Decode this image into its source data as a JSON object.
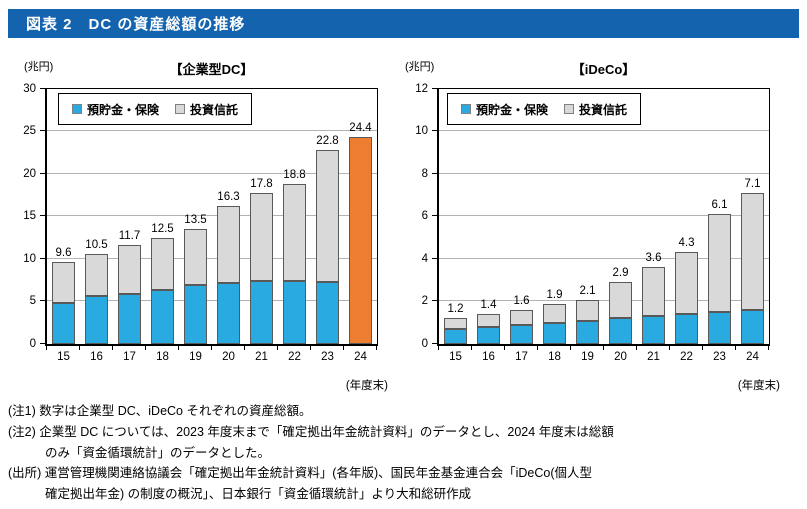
{
  "header": {
    "title": "図表 2　DC の資産総額の推移"
  },
  "colors": {
    "header_bg": "#1363AE",
    "deposits_blue": "#29ABE2",
    "trusts_gray": "#D9D9D9",
    "highlight_orange": "#ED7D31",
    "bar_border": "#595959",
    "gridline": "#B3B3B3"
  },
  "chart_data": [
    {
      "type": "bar",
      "stacked": true,
      "title": "【企業型DC】",
      "unit_label": "(兆円)",
      "x_note": "(年度末)",
      "xlabel": "",
      "ylabel": "兆円",
      "ylim": [
        0,
        30
      ],
      "ytick_step": 5,
      "grid": true,
      "legend_position": "top-left",
      "categories": [
        "15",
        "16",
        "17",
        "18",
        "19",
        "20",
        "21",
        "22",
        "23",
        "24"
      ],
      "series": [
        {
          "name": "預貯金・保険",
          "color": "#29ABE2",
          "pattern": "dots",
          "values": [
            4.8,
            5.6,
            5.9,
            6.4,
            6.9,
            7.2,
            7.4,
            7.4,
            7.3,
            null
          ]
        },
        {
          "name": "投資信託",
          "color": "#D9D9D9",
          "pattern": null,
          "values": [
            4.8,
            4.9,
            5.8,
            6.1,
            6.6,
            9.1,
            10.4,
            11.4,
            15.5,
            null
          ]
        }
      ],
      "totals": [
        9.6,
        10.5,
        11.7,
        12.5,
        13.5,
        16.3,
        17.8,
        18.8,
        22.8,
        24.4
      ],
      "override_bars": [
        {
          "index": 9,
          "value": 24.4,
          "color": "#ED7D31"
        }
      ]
    },
    {
      "type": "bar",
      "stacked": true,
      "title": "【iDeCo】",
      "unit_label": "(兆円)",
      "x_note": "(年度末)",
      "xlabel": "",
      "ylabel": "兆円",
      "ylim": [
        0,
        12
      ],
      "ytick_step": 2,
      "grid": true,
      "legend_position": "top-left",
      "categories": [
        "15",
        "16",
        "17",
        "18",
        "19",
        "20",
        "21",
        "22",
        "23",
        "24"
      ],
      "series": [
        {
          "name": "預貯金・保険",
          "color": "#29ABE2",
          "pattern": "dots",
          "values": [
            0.7,
            0.8,
            0.9,
            1.0,
            1.1,
            1.2,
            1.3,
            1.4,
            1.5,
            1.6
          ]
        },
        {
          "name": "投資信託",
          "color": "#D9D9D9",
          "pattern": null,
          "values": [
            0.5,
            0.6,
            0.7,
            0.9,
            1.0,
            1.7,
            2.3,
            2.9,
            4.6,
            5.5
          ]
        }
      ],
      "totals": [
        1.2,
        1.4,
        1.6,
        1.9,
        2.1,
        2.9,
        3.6,
        4.3,
        6.1,
        7.1
      ],
      "override_bars": []
    }
  ],
  "notes": [
    {
      "indent": false,
      "text": "(注1) 数字は企業型 DC、iDeCo それぞれの資産総額。"
    },
    {
      "indent": false,
      "text": "(注2) 企業型 DC については、2023 年度末まで「確定拠出年金統計資料」のデータとし、2024 年度末は総額"
    },
    {
      "indent": true,
      "text": "のみ「資金循環統計」のデータとした。"
    },
    {
      "indent": false,
      "text": "(出所) 運営管理機関連絡協議会「確定拠出年金統計資料」(各年版)、国民年金基金連合会「iDeCo(個人型"
    },
    {
      "indent": true,
      "text": "確定拠出年金) の制度の概況」、日本銀行「資金循環統計」より大和総研作成"
    }
  ]
}
